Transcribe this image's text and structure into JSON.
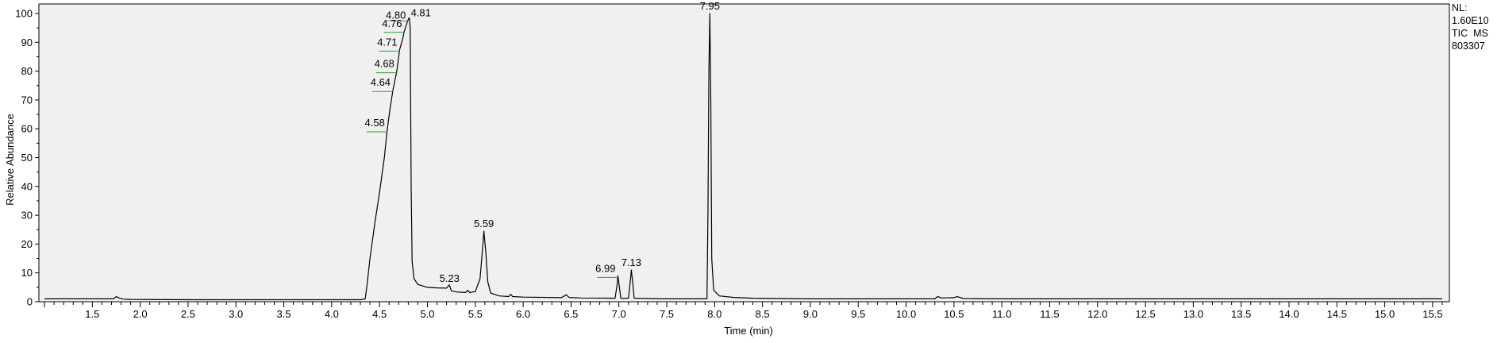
{
  "chart_data": {
    "type": "line",
    "xlabel": "Time (min)",
    "ylabel": "Relative Abundance",
    "xlim": [
      0.95,
      15.65
    ],
    "ylim": [
      0,
      100
    ],
    "x_ticks": [
      "1.5",
      "2.0",
      "2.5",
      "3.0",
      "3.5",
      "4.0",
      "4.5",
      "5.0",
      "5.5",
      "6.0",
      "6.5",
      "7.0",
      "7.5",
      "8.0",
      "8.5",
      "9.0",
      "9.5",
      "10.0",
      "10.5",
      "11.0",
      "11.5",
      "12.0",
      "12.5",
      "13.0",
      "13.5",
      "14.0",
      "14.5",
      "15.0",
      "15.5"
    ],
    "y_ticks": [
      "0",
      "10",
      "20",
      "30",
      "40",
      "50",
      "60",
      "70",
      "80",
      "90",
      "100"
    ],
    "grid": false,
    "info": {
      "nl_label": "NL:",
      "nl_value": "1.60E10",
      "trace": "TIC  MS",
      "sample": "803307"
    },
    "peak_labels": [
      {
        "text": "4.80",
        "x": 4.8,
        "y": 98
      },
      {
        "text": "4.81",
        "x": 4.81,
        "y": 98
      },
      {
        "text": "4.76",
        "x": 4.76,
        "y": 94
      },
      {
        "text": "4.71",
        "x": 4.71,
        "y": 87.5
      },
      {
        "text": "4.68",
        "x": 4.68,
        "y": 80
      },
      {
        "text": "4.64",
        "x": 4.64,
        "y": 73.5
      },
      {
        "text": "4.58",
        "x": 4.58,
        "y": 59.5
      },
      {
        "text": "5.23",
        "x": 5.23,
        "y": 5.5
      },
      {
        "text": "5.59",
        "x": 5.59,
        "y": 24.5
      },
      {
        "text": "6.99",
        "x": 6.99,
        "y": 9
      },
      {
        "text": "7.13",
        "x": 7.13,
        "y": 11
      },
      {
        "text": "7.95",
        "x": 7.95,
        "y": 100
      }
    ],
    "series": [
      {
        "points": [
          [
            1.0,
            1.0
          ],
          [
            1.5,
            1.0
          ],
          [
            1.72,
            1.0
          ],
          [
            1.75,
            1.8
          ],
          [
            1.78,
            1.3
          ],
          [
            1.82,
            0.9
          ],
          [
            1.9,
            0.8
          ],
          [
            2.5,
            0.7
          ],
          [
            3.5,
            0.7
          ],
          [
            4.3,
            0.7
          ],
          [
            4.35,
            1.0
          ],
          [
            4.37,
            6.0
          ],
          [
            4.4,
            15.0
          ],
          [
            4.45,
            27.0
          ],
          [
            4.5,
            38.0
          ],
          [
            4.55,
            50.0
          ],
          [
            4.58,
            59.5
          ],
          [
            4.61,
            67.0
          ],
          [
            4.64,
            73.5
          ],
          [
            4.68,
            80.0
          ],
          [
            4.71,
            87.5
          ],
          [
            4.74,
            91.0
          ],
          [
            4.76,
            94.0
          ],
          [
            4.78,
            96.0
          ],
          [
            4.8,
            98.0
          ],
          [
            4.81,
            98.5
          ],
          [
            4.82,
            95.0
          ],
          [
            4.83,
            40.0
          ],
          [
            4.84,
            14.0
          ],
          [
            4.86,
            8.0
          ],
          [
            4.9,
            6.0
          ],
          [
            5.0,
            5.0
          ],
          [
            5.1,
            4.8
          ],
          [
            5.2,
            4.7
          ],
          [
            5.22,
            5.5
          ],
          [
            5.23,
            5.8
          ],
          [
            5.25,
            3.8
          ],
          [
            5.3,
            3.4
          ],
          [
            5.4,
            3.2
          ],
          [
            5.42,
            4.0
          ],
          [
            5.44,
            3.2
          ],
          [
            5.5,
            3.5
          ],
          [
            5.55,
            8.0
          ],
          [
            5.58,
            20.0
          ],
          [
            5.59,
            24.5
          ],
          [
            5.61,
            17.0
          ],
          [
            5.63,
            7.0
          ],
          [
            5.66,
            3.0
          ],
          [
            5.75,
            2.0
          ],
          [
            5.85,
            1.8
          ],
          [
            5.87,
            2.6
          ],
          [
            5.89,
            1.8
          ],
          [
            6.0,
            1.6
          ],
          [
            6.4,
            1.4
          ],
          [
            6.45,
            2.4
          ],
          [
            6.48,
            1.5
          ],
          [
            6.6,
            1.3
          ],
          [
            6.96,
            1.2
          ],
          [
            6.98,
            5.5
          ],
          [
            6.99,
            9.0
          ],
          [
            7.0,
            6.5
          ],
          [
            7.02,
            1.2
          ],
          [
            7.1,
            1.2
          ],
          [
            7.12,
            7.5
          ],
          [
            7.13,
            11.0
          ],
          [
            7.14,
            8.0
          ],
          [
            7.16,
            1.2
          ],
          [
            7.5,
            1.0
          ],
          [
            7.92,
            1.0
          ],
          [
            7.93,
            30.0
          ],
          [
            7.94,
            80.0
          ],
          [
            7.95,
            100.0
          ],
          [
            7.96,
            70.0
          ],
          [
            7.97,
            15.0
          ],
          [
            7.99,
            4.0
          ],
          [
            8.05,
            2.0
          ],
          [
            8.2,
            1.5
          ],
          [
            8.4,
            1.2
          ],
          [
            9.0,
            1.0
          ],
          [
            10.0,
            1.0
          ],
          [
            10.3,
            1.0
          ],
          [
            10.33,
            1.8
          ],
          [
            10.37,
            1.3
          ],
          [
            10.5,
            1.4
          ],
          [
            10.53,
            1.8
          ],
          [
            10.6,
            1.1
          ],
          [
            11.0,
            1.0
          ],
          [
            12.0,
            1.0
          ],
          [
            13.0,
            1.0
          ],
          [
            14.0,
            1.0
          ],
          [
            15.0,
            1.0
          ],
          [
            15.6,
            1.0
          ]
        ]
      }
    ]
  }
}
